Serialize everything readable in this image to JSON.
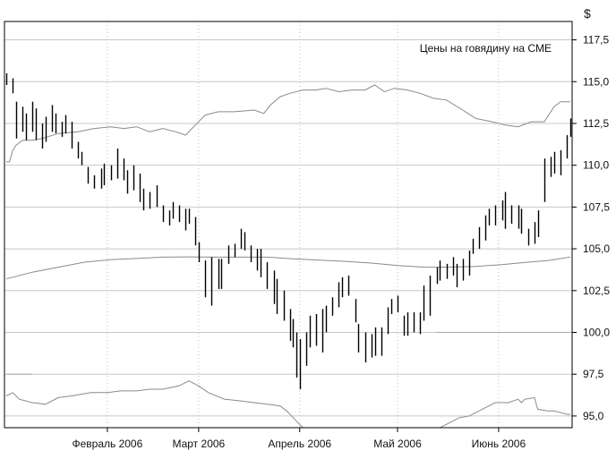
{
  "chart_data": {
    "type": "ohlc",
    "title": "Цены на говядину на CME",
    "y_unit": "$",
    "ylim": [
      94.3,
      118.6
    ],
    "y_ticks": [
      "95,0",
      "97,5",
      "100,0",
      "102,5",
      "105,0",
      "107,5",
      "110,0",
      "112,5",
      "115,0",
      "117,5"
    ],
    "y_tick_values": [
      95.0,
      97.5,
      100.0,
      102.5,
      105.0,
      107.5,
      110.0,
      112.5,
      115.0,
      117.5
    ],
    "x_labels": [
      "Февраль 2006",
      "Март 2006",
      "Апрель 2006",
      "Май 2006",
      "Июнь 2006"
    ],
    "x_label_day": [
      31,
      59,
      90,
      120,
      151
    ],
    "x_range": [
      0,
      173
    ],
    "grid": true,
    "bars": [
      {
        "d": 0,
        "h": 115.5,
        "l": 114.8
      },
      {
        "d": 2,
        "h": 115.2,
        "l": 114.3
      },
      {
        "d": 3,
        "h": 113.8,
        "l": 111.6
      },
      {
        "d": 5,
        "h": 113.5,
        "l": 112.0
      },
      {
        "d": 6,
        "h": 113.1,
        "l": 111.5
      },
      {
        "d": 8,
        "h": 113.8,
        "l": 112.0
      },
      {
        "d": 9,
        "h": 113.4,
        "l": 111.5
      },
      {
        "d": 11,
        "h": 112.5,
        "l": 111.0
      },
      {
        "d": 12,
        "h": 112.9,
        "l": 111.4
      },
      {
        "d": 14,
        "h": 113.6,
        "l": 112.0
      },
      {
        "d": 15,
        "h": 113.1,
        "l": 111.9
      },
      {
        "d": 17,
        "h": 112.6,
        "l": 111.7
      },
      {
        "d": 18,
        "h": 113.0,
        "l": 111.9
      },
      {
        "d": 20,
        "h": 112.6,
        "l": 111.0
      },
      {
        "d": 22,
        "h": 111.4,
        "l": 110.4
      },
      {
        "d": 23,
        "h": 110.8,
        "l": 110.0
      },
      {
        "d": 25,
        "h": 109.9,
        "l": 108.9
      },
      {
        "d": 27,
        "h": 109.4,
        "l": 108.6
      },
      {
        "d": 29,
        "h": 109.8,
        "l": 108.6
      },
      {
        "d": 30,
        "h": 110.1,
        "l": 108.8
      },
      {
        "d": 32,
        "h": 110.0,
        "l": 109.1
      },
      {
        "d": 34,
        "h": 111.0,
        "l": 109.2
      },
      {
        "d": 36,
        "h": 110.4,
        "l": 109.1
      },
      {
        "d": 37,
        "h": 109.7,
        "l": 108.3
      },
      {
        "d": 39,
        "h": 110.0,
        "l": 108.5
      },
      {
        "d": 41,
        "h": 109.5,
        "l": 107.8
      },
      {
        "d": 42,
        "h": 108.6,
        "l": 107.3
      },
      {
        "d": 44,
        "h": 108.4,
        "l": 107.4
      },
      {
        "d": 46,
        "h": 108.8,
        "l": 107.5
      },
      {
        "d": 48,
        "h": 107.6,
        "l": 106.6
      },
      {
        "d": 50,
        "h": 107.3,
        "l": 106.4
      },
      {
        "d": 51,
        "h": 107.8,
        "l": 106.8
      },
      {
        "d": 53,
        "h": 107.6,
        "l": 106.6
      },
      {
        "d": 55,
        "h": 107.4,
        "l": 106.1
      },
      {
        "d": 56,
        "h": 107.4,
        "l": 106.5
      },
      {
        "d": 58,
        "h": 106.9,
        "l": 105.2
      },
      {
        "d": 59,
        "h": 105.4,
        "l": 104.2
      },
      {
        "d": 61,
        "h": 104.3,
        "l": 102.1
      },
      {
        "d": 63,
        "h": 104.5,
        "l": 101.6
      },
      {
        "d": 65,
        "h": 104.4,
        "l": 102.6
      },
      {
        "d": 66,
        "h": 104.4,
        "l": 102.6
      },
      {
        "d": 68,
        "h": 105.2,
        "l": 104.1
      },
      {
        "d": 70,
        "h": 105.3,
        "l": 104.5
      },
      {
        "d": 72,
        "h": 106.2,
        "l": 105.0
      },
      {
        "d": 73,
        "h": 106.0,
        "l": 104.9
      },
      {
        "d": 75,
        "h": 105.2,
        "l": 104.2
      },
      {
        "d": 77,
        "h": 105.0,
        "l": 103.7
      },
      {
        "d": 78,
        "h": 105.0,
        "l": 103.3
      },
      {
        "d": 80,
        "h": 104.2,
        "l": 102.6
      },
      {
        "d": 82,
        "h": 103.7,
        "l": 101.7
      },
      {
        "d": 83,
        "h": 103.2,
        "l": 101.1
      },
      {
        "d": 85,
        "h": 102.5,
        "l": 100.7
      },
      {
        "d": 87,
        "h": 101.4,
        "l": 99.5
      },
      {
        "d": 88,
        "h": 100.8,
        "l": 99.1
      },
      {
        "d": 89,
        "h": 100.0,
        "l": 97.3
      },
      {
        "d": 90,
        "h": 99.6,
        "l": 96.6
      },
      {
        "d": 92,
        "h": 100.0,
        "l": 98.0
      },
      {
        "d": 93,
        "h": 101.0,
        "l": 99.1
      },
      {
        "d": 95,
        "h": 101.1,
        "l": 99.2
      },
      {
        "d": 97,
        "h": 101.4,
        "l": 98.8
      },
      {
        "d": 98,
        "h": 101.6,
        "l": 100.0
      },
      {
        "d": 100,
        "h": 102.1,
        "l": 101.0
      },
      {
        "d": 102,
        "h": 103.0,
        "l": 101.5
      },
      {
        "d": 103,
        "h": 103.3,
        "l": 102.1
      },
      {
        "d": 105,
        "h": 103.4,
        "l": 102.2
      },
      {
        "d": 107,
        "h": 102.0,
        "l": 100.6
      },
      {
        "d": 108,
        "h": 100.5,
        "l": 98.8
      },
      {
        "d": 110,
        "h": 100.0,
        "l": 98.2
      },
      {
        "d": 112,
        "h": 99.9,
        "l": 98.5
      },
      {
        "d": 113,
        "h": 100.3,
        "l": 98.6
      },
      {
        "d": 115,
        "h": 100.3,
        "l": 98.6
      },
      {
        "d": 117,
        "h": 101.5,
        "l": 99.9
      },
      {
        "d": 118,
        "h": 102.0,
        "l": 101.1
      },
      {
        "d": 120,
        "h": 102.2,
        "l": 101.2
      },
      {
        "d": 122,
        "h": 101.0,
        "l": 99.8
      },
      {
        "d": 123,
        "h": 101.2,
        "l": 99.8
      },
      {
        "d": 125,
        "h": 101.2,
        "l": 100.0
      },
      {
        "d": 127,
        "h": 101.2,
        "l": 99.9
      },
      {
        "d": 128,
        "h": 102.8,
        "l": 100.7
      },
      {
        "d": 130,
        "h": 103.4,
        "l": 101.0
      },
      {
        "d": 132,
        "h": 103.9,
        "l": 102.9
      },
      {
        "d": 133,
        "h": 104.3,
        "l": 103.1
      },
      {
        "d": 135,
        "h": 104.1,
        "l": 103.2
      },
      {
        "d": 137,
        "h": 104.5,
        "l": 103.4
      },
      {
        "d": 138,
        "h": 104.1,
        "l": 102.7
      },
      {
        "d": 140,
        "h": 104.4,
        "l": 103.1
      },
      {
        "d": 142,
        "h": 104.9,
        "l": 103.4
      },
      {
        "d": 143,
        "h": 105.6,
        "l": 104.7
      },
      {
        "d": 145,
        "h": 106.3,
        "l": 105.0
      },
      {
        "d": 147,
        "h": 107.0,
        "l": 105.5
      },
      {
        "d": 148,
        "h": 107.4,
        "l": 106.4
      },
      {
        "d": 150,
        "h": 107.6,
        "l": 106.4
      },
      {
        "d": 152,
        "h": 107.9,
        "l": 106.7
      },
      {
        "d": 153,
        "h": 108.4,
        "l": 106.2
      },
      {
        "d": 155,
        "h": 107.6,
        "l": 106.5
      },
      {
        "d": 157,
        "h": 107.6,
        "l": 106.2
      },
      {
        "d": 158,
        "h": 107.4,
        "l": 105.9
      },
      {
        "d": 160,
        "h": 106.2,
        "l": 105.2
      },
      {
        "d": 162,
        "h": 106.6,
        "l": 105.3
      },
      {
        "d": 163,
        "h": 107.3,
        "l": 105.7
      },
      {
        "d": 165,
        "h": 110.4,
        "l": 107.8
      },
      {
        "d": 167,
        "h": 110.5,
        "l": 109.3
      },
      {
        "d": 168,
        "h": 110.8,
        "l": 109.5
      },
      {
        "d": 170,
        "h": 110.9,
        "l": 109.4
      },
      {
        "d": 172,
        "h": 111.8,
        "l": 110.4
      },
      {
        "d": 173,
        "h": 112.8,
        "l": 111.7
      }
    ],
    "upper_band": [
      [
        0,
        110.2
      ],
      [
        1,
        110.2
      ],
      [
        2,
        110.9
      ],
      [
        3,
        111.2
      ],
      [
        5,
        111.5
      ],
      [
        8,
        111.5
      ],
      [
        11,
        111.6
      ],
      [
        16,
        111.9
      ],
      [
        22,
        112.0
      ],
      [
        27,
        112.2
      ],
      [
        32,
        112.3
      ],
      [
        36,
        112.2
      ],
      [
        40,
        112.3
      ],
      [
        44,
        112.0
      ],
      [
        48,
        112.2
      ],
      [
        52,
        112.0
      ],
      [
        55,
        111.8
      ],
      [
        58,
        112.4
      ],
      [
        61,
        113.0
      ],
      [
        65,
        113.2
      ],
      [
        70,
        113.2
      ],
      [
        76,
        113.3
      ],
      [
        79,
        113.1
      ],
      [
        81,
        113.6
      ],
      [
        84,
        114.1
      ],
      [
        87,
        114.3
      ],
      [
        91,
        114.5
      ],
      [
        95,
        114.5
      ],
      [
        98,
        114.6
      ],
      [
        102,
        114.4
      ],
      [
        106,
        114.5
      ],
      [
        110,
        114.5
      ],
      [
        113,
        114.8
      ],
      [
        116,
        114.4
      ],
      [
        119,
        114.6
      ],
      [
        123,
        114.5
      ],
      [
        127,
        114.3
      ],
      [
        131,
        114.0
      ],
      [
        135,
        113.9
      ],
      [
        140,
        113.3
      ],
      [
        144,
        112.8
      ],
      [
        149,
        112.6
      ],
      [
        153,
        112.4
      ],
      [
        157,
        112.3
      ],
      [
        161,
        112.6
      ],
      [
        165,
        112.6
      ],
      [
        168,
        113.5
      ],
      [
        170,
        113.8
      ],
      [
        173,
        113.8
      ]
    ],
    "moving_average": [
      [
        0,
        103.2
      ],
      [
        8,
        103.6
      ],
      [
        16,
        103.9
      ],
      [
        24,
        104.2
      ],
      [
        32,
        104.35
      ],
      [
        40,
        104.42
      ],
      [
        48,
        104.5
      ],
      [
        56,
        104.52
      ],
      [
        64,
        104.5
      ],
      [
        72,
        104.5
      ],
      [
        80,
        104.5
      ],
      [
        88,
        104.4
      ],
      [
        96,
        104.32
      ],
      [
        104,
        104.25
      ],
      [
        112,
        104.15
      ],
      [
        120,
        104.0
      ],
      [
        128,
        103.9
      ],
      [
        136,
        103.9
      ],
      [
        144,
        103.95
      ],
      [
        152,
        104.05
      ],
      [
        160,
        104.2
      ],
      [
        166,
        104.3
      ],
      [
        173,
        104.5
      ]
    ],
    "lower_band": [
      [
        0,
        96.2
      ],
      [
        2,
        96.4
      ],
      [
        4,
        96.0
      ],
      [
        8,
        95.8
      ],
      [
        12,
        95.7
      ],
      [
        16,
        96.1
      ],
      [
        20,
        96.2
      ],
      [
        26,
        96.4
      ],
      [
        31,
        96.4
      ],
      [
        35,
        96.5
      ],
      [
        40,
        96.5
      ],
      [
        44,
        96.6
      ],
      [
        48,
        96.6
      ],
      [
        53,
        96.8
      ],
      [
        56,
        97.1
      ],
      [
        59,
        96.8
      ],
      [
        62,
        96.4
      ],
      [
        67,
        96.0
      ],
      [
        72,
        95.9
      ],
      [
        76,
        95.8
      ],
      [
        80,
        95.7
      ],
      [
        84,
        95.6
      ],
      [
        86,
        95.3
      ],
      [
        88,
        94.9
      ],
      [
        90,
        94.5
      ],
      [
        91,
        94.3
      ],
      [
        133,
        94.3
      ],
      [
        136,
        94.6
      ],
      [
        139,
        94.9
      ],
      [
        142,
        95.0
      ],
      [
        145,
        95.3
      ],
      [
        150,
        95.8
      ],
      [
        154,
        95.8
      ],
      [
        157,
        96.0
      ],
      [
        158,
        95.8
      ],
      [
        159,
        96.0
      ],
      [
        162,
        96.1
      ],
      [
        163,
        95.4
      ],
      [
        166,
        95.3
      ],
      [
        168,
        95.3
      ],
      [
        170,
        95.2
      ],
      [
        172,
        95.1
      ],
      [
        173,
        95.1
      ]
    ],
    "stray_segments": [
      {
        "x": [
          0,
          8
        ],
        "y": 97.5
      },
      {
        "x": [
          132,
          173
        ],
        "y": 100.0
      }
    ],
    "colors": {
      "bar": "#000000",
      "band": "#8a8a8a",
      "grid": "#c8c8c8",
      "axis": "#000000",
      "text": "#111111"
    }
  }
}
